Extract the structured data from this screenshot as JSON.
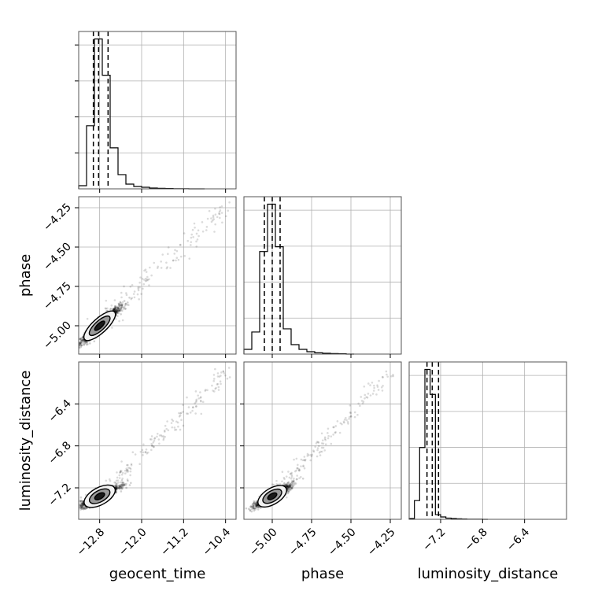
{
  "chart_data": {
    "type": "corner",
    "parameters": [
      "geocent_time",
      "phase",
      "luminosity_distance"
    ],
    "axes": {
      "geocent_time": {
        "range": [
          -13.2,
          -10.2
        ],
        "ticks": [
          -12.8,
          -12.0,
          -11.2,
          -10.4
        ],
        "tick_labels": [
          "−12.8",
          "−12.0",
          "−11.2",
          "−10.4"
        ]
      },
      "phase": {
        "range": [
          -5.18,
          -4.18
        ],
        "ticks": [
          -5.0,
          -4.75,
          -4.5,
          -4.25
        ],
        "tick_labels": [
          "−5.00",
          "−4.75",
          "−4.50",
          "−4.25"
        ]
      },
      "luminosity_distance": {
        "range": [
          -7.5,
          -6.0
        ],
        "ticks": [
          -7.2,
          -6.8,
          -6.4
        ],
        "tick_labels": [
          "−7.2",
          "−6.8",
          "−6.4"
        ]
      }
    },
    "histograms": {
      "geocent_time": {
        "bin_edges": [
          -13.2,
          -13.05,
          -12.9,
          -12.75,
          -12.6,
          -12.45,
          -12.3,
          -12.15,
          -12.0,
          -11.85,
          -11.7,
          -11.55,
          -11.4,
          -11.25,
          -11.1,
          -10.95,
          -10.8
        ],
        "counts": [
          2,
          40,
          95,
          72,
          26,
          9,
          3,
          1.5,
          1,
          0.5,
          0.3,
          0.2,
          0.1,
          0.05,
          0,
          0
        ],
        "quantiles": [
          -12.92,
          -12.82,
          -12.64
        ]
      },
      "phase": {
        "bin_edges": [
          -5.18,
          -5.13,
          -5.08,
          -5.03,
          -4.98,
          -4.93,
          -4.88,
          -4.83,
          -4.78,
          -4.73,
          -4.68,
          -4.63,
          -4.58,
          -4.53,
          -4.48
        ],
        "counts": [
          3,
          14,
          65,
          95,
          68,
          16,
          6,
          3,
          1.5,
          0.8,
          0.5,
          0.3,
          0.2,
          0
        ],
        "quantiles": [
          -5.05,
          -5.0,
          -4.95
        ]
      },
      "luminosity_distance": {
        "bin_edges": [
          -7.5,
          -7.45,
          -7.4,
          -7.35,
          -7.3,
          -7.25,
          -7.2,
          -7.15,
          -7.1,
          -7.05,
          -7.0,
          -6.95,
          -6.9,
          -6.85,
          -6.8,
          -6.75
        ],
        "counts": [
          0.5,
          12,
          46,
          96,
          80,
          3,
          1.5,
          0.8,
          0.5,
          0.3,
          0.2,
          0.1,
          0.1,
          0.05,
          0
        ],
        "quantiles": [
          -7.33,
          -7.28,
          -7.22
        ]
      }
    },
    "joint_distributions": [
      {
        "x": "geocent_time",
        "y": "phase",
        "center": [
          -12.8,
          -5.0
        ],
        "spread": [
          0.18,
          0.055
        ],
        "correlation": 0.95
      },
      {
        "x": "geocent_time",
        "y": "luminosity_distance",
        "center": [
          -12.8,
          -7.28
        ],
        "spread": [
          0.18,
          0.05
        ],
        "correlation": 0.9
      },
      {
        "x": "phase",
        "y": "luminosity_distance",
        "center": [
          -5.0,
          -7.28
        ],
        "spread": [
          0.055,
          0.05
        ],
        "correlation": 0.9
      }
    ],
    "grid": true
  }
}
